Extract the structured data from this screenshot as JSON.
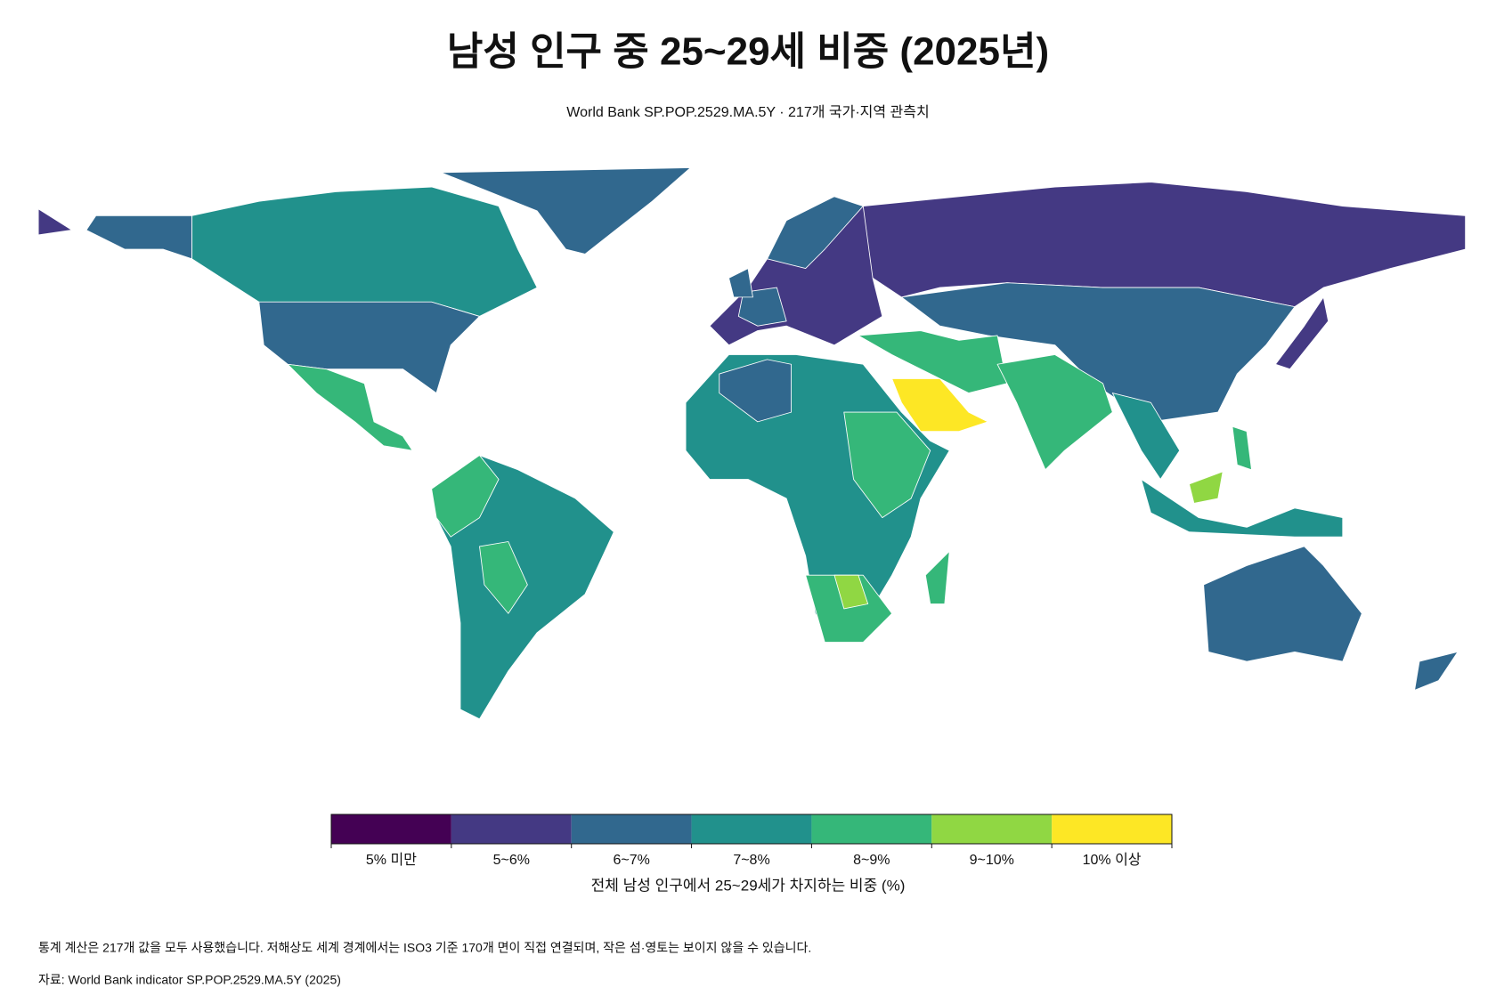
{
  "title": "남성 인구 중 25~29세 비중 (2025년)",
  "subtitle": "World Bank SP.POP.2529.MA.5Y · 217개 국가·지역 관측치",
  "legend": {
    "title": "전체 남성 인구에서 25~29세가 차지하는 비중 (%)",
    "bins": [
      {
        "label": "5% 미만",
        "color": "#440154"
      },
      {
        "label": "5~6%",
        "color": "#443983"
      },
      {
        "label": "6~7%",
        "color": "#31688e"
      },
      {
        "label": "7~8%",
        "color": "#21918c"
      },
      {
        "label": "8~9%",
        "color": "#35b779"
      },
      {
        "label": "9~10%",
        "color": "#90d743"
      },
      {
        "label": "10% 이상",
        "color": "#fde725"
      }
    ]
  },
  "footnote": "통계 계산은 217개 값을 모두 사용했습니다. 저해상도 세계 경계에서는 ISO3 기준 170개 면이 직접 연결되며, 작은 섬·영토는 보이지 않을 수 있습니다.",
  "source": "자료: World Bank indicator SP.POP.2529.MA.5Y (2025)"
}
